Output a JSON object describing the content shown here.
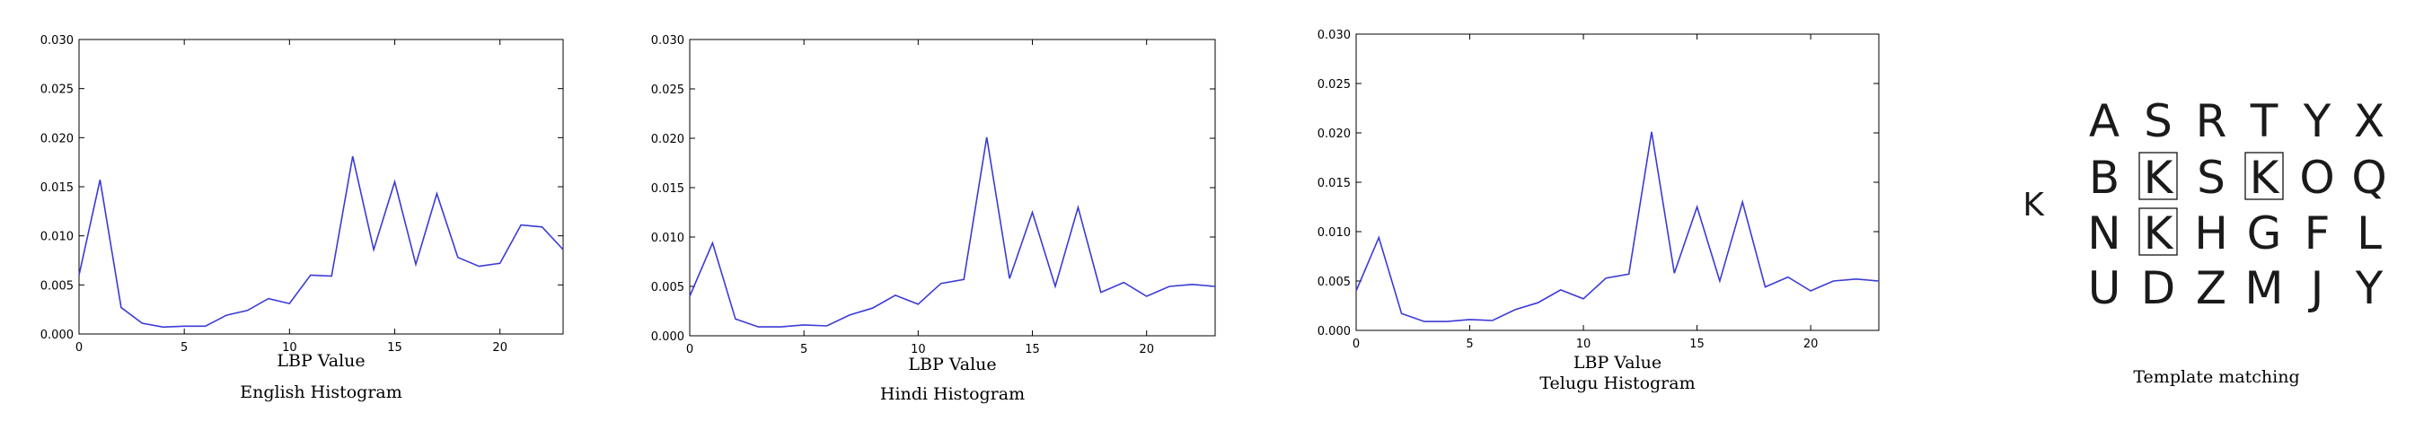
{
  "chart_data": [
    {
      "type": "line",
      "caption": "English Histogram",
      "xlabel": "LBP Value",
      "xlim": [
        0,
        23
      ],
      "ylim": [
        0,
        0.03
      ],
      "x_ticks": [
        "0",
        "5",
        "10",
        "15",
        "20"
      ],
      "y_ticks": [
        "0.000",
        "0.005",
        "0.010",
        "0.015",
        "0.020",
        "0.025",
        "0.030"
      ],
      "series": [
        {
          "values": [
            0.006,
            0.0157,
            0.0027,
            0.0011,
            0.0007,
            0.0008,
            0.0008,
            0.0019,
            0.0024,
            0.0036,
            0.0031,
            0.006,
            0.0059,
            0.0181,
            0.0086,
            0.0155,
            0.0071,
            0.0143,
            0.0078,
            0.0069,
            0.0072,
            0.0111,
            0.0109,
            0.0086
          ]
        }
      ]
    },
    {
      "type": "line",
      "caption": "Hindi Histogram",
      "xlabel": "LBP Value",
      "xlim": [
        0,
        23
      ],
      "ylim": [
        0,
        0.03
      ],
      "x_ticks": [
        "0",
        "5",
        "10",
        "15",
        "20"
      ],
      "y_ticks": [
        "0.000",
        "0.005",
        "0.010",
        "0.015",
        "0.020",
        "0.025",
        "0.030"
      ],
      "series": [
        {
          "values": [
            0.004,
            0.0094,
            0.0017,
            0.0009,
            0.0009,
            0.0011,
            0.001,
            0.0021,
            0.0028,
            0.0041,
            0.0032,
            0.0053,
            0.0057,
            0.0201,
            0.0058,
            0.0125,
            0.005,
            0.013,
            0.0044,
            0.0054,
            0.004,
            0.005,
            0.0052,
            0.005
          ]
        }
      ]
    },
    {
      "type": "line",
      "caption": "Telugu Histogram",
      "xlabel": "LBP Value",
      "xlim": [
        0,
        23
      ],
      "ylim": [
        0,
        0.03
      ],
      "x_ticks": [
        "0",
        "5",
        "10",
        "15",
        "20"
      ],
      "y_ticks": [
        "0.000",
        "0.005",
        "0.010",
        "0.015",
        "0.020",
        "0.025",
        "0.030"
      ],
      "series": [
        {
          "values": [
            0.004,
            0.0094,
            0.0017,
            0.0009,
            0.0009,
            0.0011,
            0.001,
            0.0021,
            0.0028,
            0.0041,
            0.0032,
            0.0053,
            0.0057,
            0.0201,
            0.0058,
            0.0125,
            0.005,
            0.013,
            0.0044,
            0.0054,
            0.004,
            0.005,
            0.0052,
            0.005
          ]
        }
      ]
    }
  ],
  "template_matching": {
    "caption": "Template matching",
    "query_letter": "K",
    "grid": [
      [
        "A",
        "S",
        "R",
        "T",
        "Y",
        "X"
      ],
      [
        "B",
        "K",
        "S",
        "K",
        "O",
        "Q"
      ],
      [
        "N",
        "K",
        "H",
        "G",
        "F",
        "L"
      ],
      [
        "U",
        "D",
        "Z",
        "M",
        "J",
        "Y"
      ]
    ],
    "highlighted": [
      [
        1,
        1
      ],
      [
        1,
        3
      ],
      [
        2,
        1
      ]
    ]
  }
}
